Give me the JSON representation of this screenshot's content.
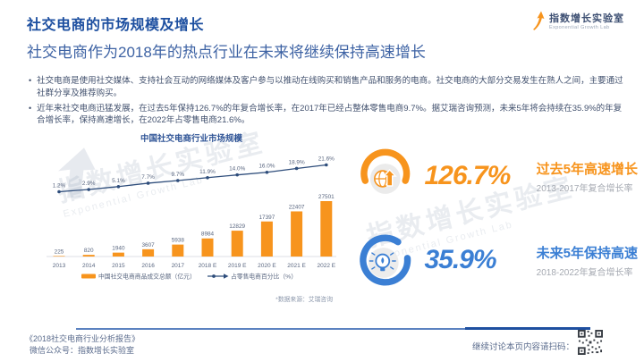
{
  "header": {
    "title": "社交电商的市场规模及增长",
    "subtitle": "社交电商作为2018年的热点行业在未来将继续保持高速增长",
    "logo": {
      "name": "指数增长实验室",
      "sub": "Exponential Growth Lab"
    }
  },
  "bullets": [
    "社交电商是使用社交媒体、支持社会互动的网络媒体及客户参与以推动在线购买和销售产品和服务的电商。社交电商的大部分交易发生在熟人之间，主要通过社群分享及推荐购买。",
    "近年来社交电商迅猛发展，在过去5年保持126.7%的年复合增长率，在2017年已经占整体零售电商9.7%。据艾瑞咨询预测，未来5年将会持续在35.9%的年复合增长率，保持高速增长，在2022年占零售电商21.6%。"
  ],
  "chart_data": {
    "type": "bar",
    "title": "中国社交电商行业市场规模",
    "categories": [
      "2013",
      "2014",
      "2015",
      "2016",
      "2017",
      "2018 E",
      "2019 E",
      "2020 E",
      "2021 E",
      "2022 E"
    ],
    "series": [
      {
        "name": "中国社交电商商品成交总额（亿元）",
        "type": "bar",
        "color": "#F7941D",
        "values": [
          225,
          820,
          1940,
          3607,
          5938,
          8984,
          12829,
          17397,
          22407,
          27501
        ]
      },
      {
        "name": "占零售电商百分比（%）",
        "type": "line",
        "color": "#2E4D7B",
        "values": [
          1.2,
          2.9,
          5.1,
          7.7,
          9.7,
          11.9,
          14.0,
          16.0,
          18.9,
          21.6
        ]
      }
    ],
    "ylim": [
      0,
      28000
    ],
    "y2lim": [
      0,
      25
    ],
    "legend_position": "bottom",
    "grid": false,
    "footnote": "*数据来源：艾瑞咨询"
  },
  "stats": [
    {
      "value": "126.7%",
      "label": "过去5年高速增长",
      "sublabel": "2013-2017年复合增长率",
      "color": "#F7941D"
    },
    {
      "value": "35.9%",
      "label": "未来5年保持高速",
      "sublabel": "2018-2022年复合增长率",
      "color": "#3B7FD4"
    }
  ],
  "footer": {
    "report": "《2018社交电商行业分析报告》",
    "wechat": "微信公众号：指数增长实验室",
    "qr_hint": "继续讨论本页内容请扫码："
  },
  "watermark": {
    "text": "指数增长实验室",
    "sub": "Exponential Growth Lab"
  },
  "colors": {
    "title_blue": "#1D4FA0",
    "subtitle_blue": "#3E63A4",
    "accent_orange": "#F7941D",
    "accent_blue": "#3B7FD4",
    "line_navy": "#2E4D7B"
  }
}
